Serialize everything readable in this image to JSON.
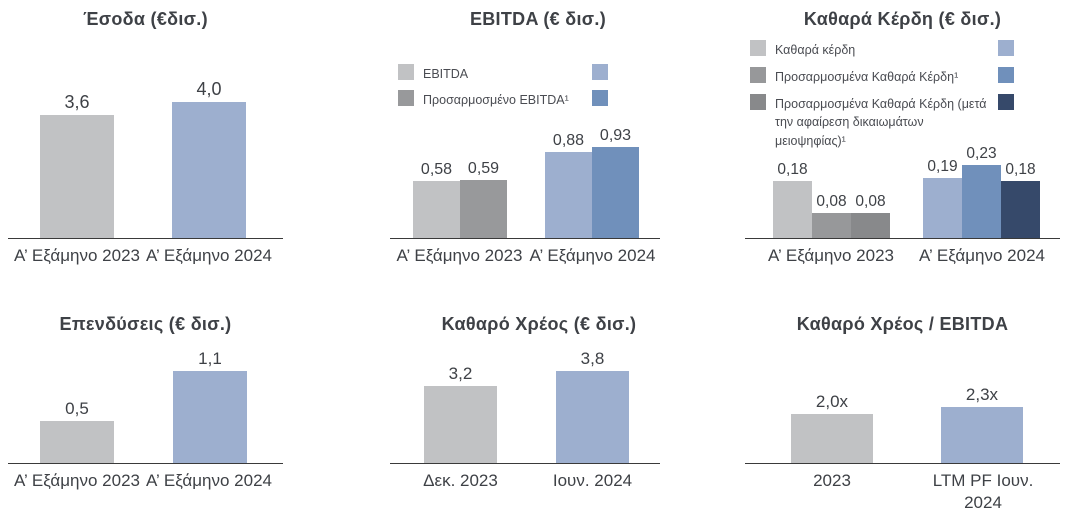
{
  "page": {
    "background": "#ffffff",
    "text_color": "#3e4146",
    "axis_color": "#3a3a3a"
  },
  "palette": {
    "gray_light": "#c1c2c4",
    "gray_medium": "#98999b",
    "gray_dark": "#88898b",
    "blue_light": "#9dafcf",
    "blue_medium": "#7090bb",
    "blue_dark": "#36496a"
  },
  "chart_data": [
    {
      "type": "bar",
      "title": "Έσοδα (€δισ.)",
      "categories": [
        "Α’ Εξάμηνο 2023",
        "Α’ Εξάμηνο 2024"
      ],
      "series": [
        {
          "name": "Έσοδα",
          "values": [
            3.6,
            4.0
          ],
          "labels": [
            "3,6",
            "4,0"
          ],
          "colors": [
            "#c1c2c4",
            "#9dafcf"
          ]
        }
      ],
      "ylim": [
        0,
        4.7
      ],
      "grid": false,
      "legend_position": "none"
    },
    {
      "type": "bar",
      "title": "EBITDA (€ δισ.)",
      "categories": [
        "Α’ Εξάμηνο 2023",
        "Α’ Εξάμηνο 2024"
      ],
      "series": [
        {
          "name": "EBITDA",
          "values": [
            0.58,
            0.88
          ],
          "labels": [
            "0,58",
            "0,88"
          ],
          "colors": [
            "#c1c2c4",
            "#9dafcf"
          ]
        },
        {
          "name": "Προσαρμοσμένο EBITDA¹",
          "values": [
            0.59,
            0.93
          ],
          "labels": [
            "0,59",
            "0,93"
          ],
          "colors": [
            "#98999b",
            "#7090bb"
          ]
        }
      ],
      "ylim": [
        0,
        1.18
      ],
      "grid": false,
      "legend_position": "upper-left",
      "legend": {
        "rows": [
          {
            "label": "EBITDA",
            "left_color": "#c1c2c4",
            "right_color": "#9dafcf"
          },
          {
            "label": "Προσαρμοσμένο EBITDA¹",
            "left_color": "#98999b",
            "right_color": "#7090bb"
          }
        ]
      }
    },
    {
      "type": "bar",
      "title": "Καθαρά Κέρδη (€ δισ.)",
      "categories": [
        "Α’ Εξάμηνο 2023",
        "Α’ Εξάμηνο 2024"
      ],
      "series": [
        {
          "name": "Καθαρά κέρδη",
          "values": [
            0.18,
            0.19
          ],
          "labels": [
            "0,18",
            "0,19"
          ],
          "colors": [
            "#c1c2c4",
            "#9dafcf"
          ]
        },
        {
          "name": "Προσαρμοσμένα Καθαρά Κέρδη¹",
          "values": [
            0.08,
            0.23
          ],
          "labels": [
            "0,08",
            "0,23"
          ],
          "colors": [
            "#97989a",
            "#7090bb"
          ]
        },
        {
          "name": "Προσαρμοσμένα Καθαρά Κέρδη (μετά την αφαίρεση δικαιωμάτων μειοψηφίας)¹",
          "values": [
            0.08,
            0.18
          ],
          "labels": [
            "0,08",
            "0,18"
          ],
          "colors": [
            "#88898b",
            "#36496a"
          ]
        }
      ],
      "ylim": [
        0,
        0.3
      ],
      "grid": false,
      "legend_position": "upper-left",
      "legend": {
        "rows": [
          {
            "label": "Καθαρά κέρδη",
            "left_color": "#c1c2c4",
            "right_color": "#9dafcf"
          },
          {
            "label": "Προσαρμοσμένα Καθαρά Κέρδη¹",
            "left_color": "#97989a",
            "right_color": "#7090bb"
          },
          {
            "label": "Προσαρμοσμένα Καθαρά Κέρδη (μετά την αφαίρεση δικαιωμάτων μειοψηφίας)¹",
            "left_color": "#88898b",
            "right_color": "#36496a"
          }
        ]
      }
    },
    {
      "type": "bar",
      "title": "Επενδύσεις (€ δισ.)",
      "categories": [
        "Α’ Εξάμηνο 2023",
        "Α’ Εξάμηνο 2024"
      ],
      "series": [
        {
          "name": "Επενδύσεις",
          "values": [
            0.5,
            1.1
          ],
          "labels": [
            "0,5",
            "1,1"
          ],
          "colors": [
            "#c1c2c4",
            "#9dafcf"
          ]
        }
      ],
      "ylim": [
        0,
        1.37
      ],
      "grid": false,
      "legend_position": "none"
    },
    {
      "type": "bar",
      "title": "Καθαρό Χρέος (€ δισ.)",
      "categories": [
        "Δεκ. 2023",
        "Ιουν. 2024"
      ],
      "series": [
        {
          "name": "Καθαρό Χρέος",
          "values": [
            3.2,
            3.8
          ],
          "labels": [
            "3,2",
            "3,8"
          ],
          "colors": [
            "#c1c2c4",
            "#9dafcf"
          ]
        }
      ],
      "ylim": [
        0,
        4.75
      ],
      "grid": false,
      "legend_position": "none"
    },
    {
      "type": "bar",
      "title": "Καθαρό Χρέος / EBITDA",
      "categories": [
        "2023",
        "LTM PF Ιουν. 2024"
      ],
      "series": [
        {
          "name": "Καθαρό Χρέος / EBITDA",
          "values": [
            2.0,
            2.3
          ],
          "labels": [
            "2,0x",
            "2,3x"
          ],
          "colors": [
            "#c1c2c4",
            "#9dafcf"
          ]
        }
      ],
      "ylim": [
        0,
        3.27
      ],
      "grid": false,
      "legend_position": "none"
    }
  ]
}
